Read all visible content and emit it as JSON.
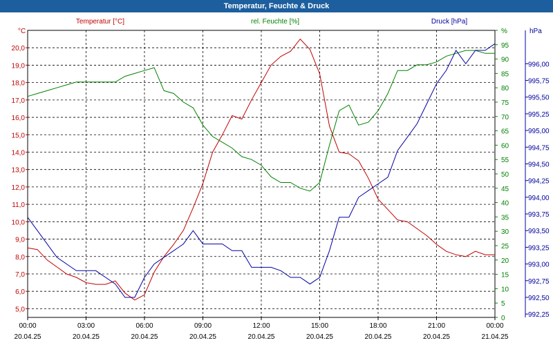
{
  "window": {
    "title": "Temperatur, Feuchte & Druck"
  },
  "chart_data": {
    "type": "line",
    "title": "Temperatur, Feuchte & Druck",
    "grid": true,
    "legend": "top",
    "x_ticks": [
      {
        "time": "00:00",
        "date": "20.04.25"
      },
      {
        "time": "03:00",
        "date": "20.04.25"
      },
      {
        "time": "06:00",
        "date": "20.04.25"
      },
      {
        "time": "09:00",
        "date": "20.04.25"
      },
      {
        "time": "12:00",
        "date": "20.04.25"
      },
      {
        "time": "15:00",
        "date": "20.04.25"
      },
      {
        "time": "18:00",
        "date": "20.04.25"
      },
      {
        "time": "21:00",
        "date": "20.04.25"
      },
      {
        "time": "00:00",
        "date": "21.04.25"
      }
    ],
    "x_unit": "hours",
    "xlim": [
      0,
      24
    ],
    "axes": {
      "temperature": {
        "unit": "°C",
        "ylim": [
          4.5,
          21.0
        ],
        "ticks": [
          "5,0",
          "6,0",
          "7,0",
          "8,0",
          "9,0",
          "10,0",
          "11,0",
          "12,0",
          "13,0",
          "14,0",
          "15,0",
          "16,0",
          "17,0",
          "18,0",
          "19,0",
          "20,0"
        ],
        "color": "#c00000"
      },
      "humidity": {
        "unit": "%",
        "ylim": [
          0,
          100
        ],
        "ticks": [
          "0",
          "5",
          "10",
          "15",
          "20",
          "25",
          "30",
          "35",
          "40",
          "45",
          "50",
          "55",
          "60",
          "65",
          "70",
          "75",
          "80",
          "85",
          "90",
          "95",
          "%"
        ],
        "color": "#008000"
      },
      "pressure": {
        "unit": "hPa",
        "ylim": [
          992.2,
          996.5
        ],
        "ticks": [
          "992,25",
          "992,50",
          "992,75",
          "993,00",
          "993,25",
          "993,50",
          "993,75",
          "994,00",
          "994,25",
          "994,50",
          "994,75",
          "995,00",
          "995,25",
          "995,50",
          "995,75",
          "996,00"
        ],
        "color": "#0000a0"
      }
    },
    "series": [
      {
        "name": "Temperatur [°C]",
        "axis": "temperature",
        "color": "#c00000",
        "x": [
          0,
          0.5,
          1,
          1.5,
          2,
          2.5,
          3,
          3.5,
          4,
          4.5,
          5,
          5.5,
          6,
          6.5,
          7,
          7.5,
          8,
          8.5,
          9,
          9.5,
          10,
          10.5,
          11,
          11.5,
          12,
          12.5,
          13,
          13.5,
          14,
          14.5,
          15,
          15.5,
          16,
          16.5,
          17,
          17.5,
          18,
          18.5,
          19,
          19.5,
          20,
          20.5,
          21,
          21.5,
          22,
          22.5,
          23,
          23.5,
          24
        ],
        "y": [
          8.5,
          8.4,
          7.8,
          7.4,
          7.0,
          6.8,
          6.5,
          6.4,
          6.4,
          6.6,
          5.9,
          5.5,
          5.8,
          7.1,
          8.0,
          8.7,
          9.5,
          10.8,
          12.2,
          14.0,
          15.0,
          16.1,
          15.9,
          17.0,
          18.0,
          19.0,
          19.5,
          19.8,
          20.5,
          19.9,
          18.5,
          15.5,
          14.0,
          13.9,
          13.5,
          12.5,
          11.3,
          10.7,
          10.1,
          10.0,
          9.6,
          9.2,
          8.7,
          8.3,
          8.1,
          8.0,
          8.3,
          8.1,
          8.1
        ]
      },
      {
        "name": "rel. Feuchte [%]",
        "axis": "humidity",
        "color": "#008000",
        "x": [
          0,
          0.5,
          1,
          1.5,
          2,
          2.5,
          3,
          3.5,
          4,
          4.5,
          5,
          5.5,
          6,
          6.5,
          7,
          7.5,
          8,
          8.5,
          9,
          9.5,
          10,
          10.5,
          11,
          11.5,
          12,
          12.5,
          13,
          13.5,
          14,
          14.5,
          15,
          15.5,
          16,
          16.5,
          17,
          17.5,
          18,
          18.5,
          19,
          19.5,
          20,
          20.5,
          21,
          21.5,
          22,
          22.5,
          23,
          23.5,
          24
        ],
        "y": [
          77,
          78,
          79,
          80,
          81,
          82,
          82,
          82,
          82,
          82,
          84,
          85,
          86,
          87,
          79,
          78,
          75,
          73,
          67,
          63,
          61,
          59,
          56,
          55,
          53,
          49,
          47,
          47,
          45,
          44,
          47,
          60,
          72,
          74,
          67,
          68,
          72,
          78,
          86,
          86,
          88,
          88,
          89,
          91,
          92,
          93,
          93,
          92,
          92
        ]
      },
      {
        "name": "Druck [hPa]",
        "axis": "pressure",
        "color": "#0000a0",
        "x": [
          0,
          0.5,
          1,
          1.5,
          2,
          2.5,
          3,
          3.5,
          4,
          4.5,
          5,
          5.5,
          6,
          6.5,
          7,
          7.5,
          8,
          8.5,
          9,
          9.5,
          10,
          10.5,
          11,
          11.5,
          12,
          12.5,
          13,
          13.5,
          14,
          14.5,
          15,
          15.5,
          16,
          16.5,
          17,
          17.5,
          18,
          18.5,
          19,
          19.5,
          20,
          20.5,
          21,
          21.5,
          22,
          22.5,
          23,
          23.5,
          24
        ],
        "y": [
          993.7,
          993.5,
          993.3,
          993.1,
          993.0,
          992.9,
          992.9,
          992.9,
          992.8,
          992.7,
          992.5,
          992.5,
          992.8,
          993.0,
          993.1,
          993.2,
          993.3,
          993.5,
          993.3,
          993.3,
          993.3,
          993.2,
          993.2,
          992.95,
          992.95,
          992.95,
          992.9,
          992.8,
          992.8,
          992.7,
          992.8,
          993.2,
          993.7,
          993.7,
          994.0,
          994.1,
          994.2,
          994.3,
          994.7,
          994.9,
          995.1,
          995.4,
          995.7,
          995.9,
          996.2,
          996.0,
          996.2,
          996.2,
          996.3
        ]
      }
    ]
  }
}
